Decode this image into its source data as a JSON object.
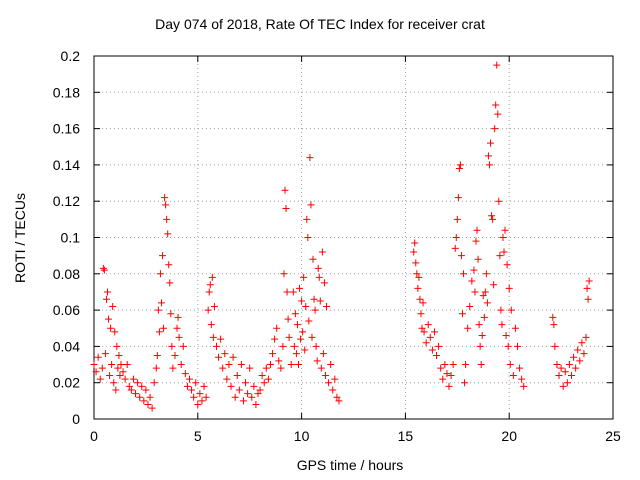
{
  "chart_data": {
    "type": "scatter",
    "title": "Day 074 of 2018, Rate Of TEC Index for receiver crat",
    "xlabel": "GPS time / hours",
    "ylabel": "ROTI / TECUs",
    "xlim": [
      0,
      25
    ],
    "ylim": [
      0,
      0.2
    ],
    "x_ticks": [
      "0",
      "5",
      "10",
      "15",
      "20",
      "25"
    ],
    "y_ticks": [
      "0",
      "0.02",
      "0.04",
      "0.06",
      "0.08",
      "0.1",
      "0.12",
      "0.14",
      "0.16",
      "0.18",
      "0.2"
    ],
    "grid": true,
    "marker": "+",
    "color": "#ff0000",
    "series": [
      {
        "name": "ROTI",
        "points": [
          [
            0.0,
            0.03
          ],
          [
            0.1,
            0.026
          ],
          [
            0.2,
            0.034
          ],
          [
            0.3,
            0.022
          ],
          [
            0.4,
            0.028
          ],
          [
            0.45,
            0.083
          ],
          [
            0.5,
            0.082
          ],
          [
            0.55,
            0.036
          ],
          [
            0.6,
            0.066
          ],
          [
            0.65,
            0.07
          ],
          [
            0.7,
            0.055
          ],
          [
            0.75,
            0.024
          ],
          [
            0.8,
            0.05
          ],
          [
            0.85,
            0.03
          ],
          [
            0.9,
            0.062
          ],
          [
            0.95,
            0.02
          ],
          [
            1.0,
            0.048
          ],
          [
            1.05,
            0.016
          ],
          [
            1.1,
            0.04
          ],
          [
            1.15,
            0.028
          ],
          [
            1.2,
            0.035
          ],
          [
            1.25,
            0.024
          ],
          [
            1.3,
            0.03
          ],
          [
            1.4,
            0.026
          ],
          [
            1.5,
            0.022
          ],
          [
            1.6,
            0.03
          ],
          [
            1.7,
            0.018
          ],
          [
            1.8,
            0.016
          ],
          [
            1.9,
            0.022
          ],
          [
            2.0,
            0.014
          ],
          [
            2.1,
            0.02
          ],
          [
            2.2,
            0.012
          ],
          [
            2.3,
            0.018
          ],
          [
            2.4,
            0.01
          ],
          [
            2.5,
            0.016
          ],
          [
            2.6,
            0.008
          ],
          [
            2.7,
            0.012
          ],
          [
            2.8,
            0.006
          ],
          [
            2.9,
            0.02
          ],
          [
            3.0,
            0.028
          ],
          [
            3.05,
            0.035
          ],
          [
            3.1,
            0.06
          ],
          [
            3.15,
            0.048
          ],
          [
            3.2,
            0.08
          ],
          [
            3.25,
            0.064
          ],
          [
            3.3,
            0.09
          ],
          [
            3.35,
            0.05
          ],
          [
            3.4,
            0.122
          ],
          [
            3.45,
            0.118
          ],
          [
            3.5,
            0.11
          ],
          [
            3.55,
            0.102
          ],
          [
            3.6,
            0.085
          ],
          [
            3.65,
            0.075
          ],
          [
            3.7,
            0.058
          ],
          [
            3.75,
            0.04
          ],
          [
            3.8,
            0.028
          ],
          [
            3.9,
            0.035
          ],
          [
            4.0,
            0.05
          ],
          [
            4.05,
            0.056
          ],
          [
            4.1,
            0.045
          ],
          [
            4.2,
            0.03
          ],
          [
            4.3,
            0.04
          ],
          [
            4.4,
            0.025
          ],
          [
            4.5,
            0.018
          ],
          [
            4.6,
            0.022
          ],
          [
            4.7,
            0.016
          ],
          [
            4.8,
            0.012
          ],
          [
            4.9,
            0.02
          ],
          [
            5.0,
            0.008
          ],
          [
            5.1,
            0.014
          ],
          [
            5.2,
            0.01
          ],
          [
            5.3,
            0.018
          ],
          [
            5.4,
            0.012
          ],
          [
            5.5,
            0.06
          ],
          [
            5.55,
            0.07
          ],
          [
            5.6,
            0.074
          ],
          [
            5.65,
            0.052
          ],
          [
            5.7,
            0.078
          ],
          [
            5.75,
            0.045
          ],
          [
            5.8,
            0.062
          ],
          [
            5.9,
            0.04
          ],
          [
            6.0,
            0.034
          ],
          [
            6.1,
            0.044
          ],
          [
            6.2,
            0.028
          ],
          [
            6.3,
            0.036
          ],
          [
            6.4,
            0.022
          ],
          [
            6.5,
            0.03
          ],
          [
            6.6,
            0.018
          ],
          [
            6.7,
            0.034
          ],
          [
            6.8,
            0.012
          ],
          [
            6.9,
            0.024
          ],
          [
            7.0,
            0.016
          ],
          [
            7.1,
            0.03
          ],
          [
            7.2,
            0.01
          ],
          [
            7.3,
            0.02
          ],
          [
            7.4,
            0.014
          ],
          [
            7.5,
            0.028
          ],
          [
            7.6,
            0.012
          ],
          [
            7.7,
            0.018
          ],
          [
            7.8,
            0.008
          ],
          [
            7.9,
            0.014
          ],
          [
            8.0,
            0.016
          ],
          [
            8.1,
            0.024
          ],
          [
            8.2,
            0.02
          ],
          [
            8.3,
            0.028
          ],
          [
            8.4,
            0.022
          ],
          [
            8.5,
            0.03
          ],
          [
            8.6,
            0.036
          ],
          [
            8.7,
            0.044
          ],
          [
            8.8,
            0.05
          ],
          [
            8.9,
            0.032
          ],
          [
            9.0,
            0.028
          ],
          [
            9.1,
            0.04
          ],
          [
            9.15,
            0.08
          ],
          [
            9.2,
            0.126
          ],
          [
            9.25,
            0.116
          ],
          [
            9.3,
            0.07
          ],
          [
            9.35,
            0.055
          ],
          [
            9.4,
            0.045
          ],
          [
            9.5,
            0.03
          ],
          [
            9.6,
            0.07
          ],
          [
            9.65,
            0.04
          ],
          [
            9.7,
            0.058
          ],
          [
            9.75,
            0.036
          ],
          [
            9.8,
            0.052
          ],
          [
            9.85,
            0.03
          ],
          [
            9.9,
            0.072
          ],
          [
            9.95,
            0.044
          ],
          [
            10.0,
            0.065
          ],
          [
            10.05,
            0.048
          ],
          [
            10.1,
            0.078
          ],
          [
            10.15,
            0.038
          ],
          [
            10.2,
            0.062
          ],
          [
            10.25,
            0.11
          ],
          [
            10.3,
            0.1
          ],
          [
            10.35,
            0.054
          ],
          [
            10.4,
            0.144
          ],
          [
            10.45,
            0.118
          ],
          [
            10.5,
            0.045
          ],
          [
            10.55,
            0.088
          ],
          [
            10.6,
            0.066
          ],
          [
            10.65,
            0.06
          ],
          [
            10.7,
            0.04
          ],
          [
            10.75,
            0.032
          ],
          [
            10.8,
            0.083
          ],
          [
            10.85,
            0.078
          ],
          [
            10.9,
            0.065
          ],
          [
            10.95,
            0.028
          ],
          [
            11.0,
            0.092
          ],
          [
            11.05,
            0.036
          ],
          [
            11.1,
            0.075
          ],
          [
            11.15,
            0.024
          ],
          [
            11.2,
            0.062
          ],
          [
            11.3,
            0.02
          ],
          [
            11.4,
            0.03
          ],
          [
            11.5,
            0.016
          ],
          [
            11.6,
            0.022
          ],
          [
            11.7,
            0.012
          ],
          [
            11.8,
            0.01
          ],
          [
            15.4,
            0.092
          ],
          [
            15.45,
            0.097
          ],
          [
            15.5,
            0.086
          ],
          [
            15.55,
            0.08
          ],
          [
            15.6,
            0.072
          ],
          [
            15.65,
            0.078
          ],
          [
            15.7,
            0.066
          ],
          [
            15.75,
            0.058
          ],
          [
            15.8,
            0.05
          ],
          [
            15.85,
            0.064
          ],
          [
            15.9,
            0.048
          ],
          [
            16.0,
            0.042
          ],
          [
            16.1,
            0.052
          ],
          [
            16.2,
            0.045
          ],
          [
            16.3,
            0.038
          ],
          [
            16.4,
            0.048
          ],
          [
            16.5,
            0.035
          ],
          [
            16.6,
            0.04
          ],
          [
            16.7,
            0.028
          ],
          [
            16.8,
            0.022
          ],
          [
            16.9,
            0.03
          ],
          [
            17.0,
            0.025
          ],
          [
            17.1,
            0.018
          ],
          [
            17.2,
            0.024
          ],
          [
            17.3,
            0.03
          ],
          [
            17.4,
            0.094
          ],
          [
            17.45,
            0.1
          ],
          [
            17.5,
            0.11
          ],
          [
            17.55,
            0.122
          ],
          [
            17.6,
            0.138
          ],
          [
            17.65,
            0.14
          ],
          [
            17.7,
            0.09
          ],
          [
            17.75,
            0.058
          ],
          [
            17.8,
            0.08
          ],
          [
            17.85,
            0.02
          ],
          [
            17.9,
            0.03
          ],
          [
            18.0,
            0.05
          ],
          [
            18.1,
            0.062
          ],
          [
            18.2,
            0.076
          ],
          [
            18.3,
            0.082
          ],
          [
            18.35,
            0.07
          ],
          [
            18.4,
            0.098
          ],
          [
            18.45,
            0.104
          ],
          [
            18.5,
            0.088
          ],
          [
            18.55,
            0.052
          ],
          [
            18.6,
            0.04
          ],
          [
            18.65,
            0.03
          ],
          [
            18.7,
            0.046
          ],
          [
            18.75,
            0.068
          ],
          [
            18.8,
            0.056
          ],
          [
            18.85,
            0.07
          ],
          [
            18.9,
            0.08
          ],
          [
            18.95,
            0.064
          ],
          [
            19.0,
            0.145
          ],
          [
            19.05,
            0.14
          ],
          [
            19.1,
            0.152
          ],
          [
            19.15,
            0.112
          ],
          [
            19.2,
            0.11
          ],
          [
            19.25,
            0.074
          ],
          [
            19.3,
            0.16
          ],
          [
            19.35,
            0.173
          ],
          [
            19.4,
            0.195
          ],
          [
            19.45,
            0.168
          ],
          [
            19.5,
            0.12
          ],
          [
            19.55,
            0.09
          ],
          [
            19.6,
            0.06
          ],
          [
            19.65,
            0.052
          ],
          [
            19.7,
            0.1
          ],
          [
            19.75,
            0.092
          ],
          [
            19.8,
            0.104
          ],
          [
            19.85,
            0.046
          ],
          [
            19.9,
            0.085
          ],
          [
            19.95,
            0.04
          ],
          [
            20.0,
            0.072
          ],
          [
            20.05,
            0.03
          ],
          [
            20.1,
            0.06
          ],
          [
            20.2,
            0.024
          ],
          [
            20.3,
            0.05
          ],
          [
            20.4,
            0.04
          ],
          [
            20.5,
            0.028
          ],
          [
            20.6,
            0.022
          ],
          [
            20.7,
            0.018
          ],
          [
            22.1,
            0.056
          ],
          [
            22.15,
            0.052
          ],
          [
            22.2,
            0.04
          ],
          [
            22.3,
            0.03
          ],
          [
            22.4,
            0.024
          ],
          [
            22.5,
            0.028
          ],
          [
            22.6,
            0.018
          ],
          [
            22.7,
            0.026
          ],
          [
            22.8,
            0.02
          ],
          [
            22.9,
            0.03
          ],
          [
            23.0,
            0.024
          ],
          [
            23.1,
            0.034
          ],
          [
            23.2,
            0.028
          ],
          [
            23.3,
            0.038
          ],
          [
            23.4,
            0.032
          ],
          [
            23.5,
            0.042
          ],
          [
            23.6,
            0.036
          ],
          [
            23.7,
            0.045
          ],
          [
            23.75,
            0.072
          ],
          [
            23.8,
            0.066
          ],
          [
            23.85,
            0.076
          ]
        ]
      }
    ]
  }
}
